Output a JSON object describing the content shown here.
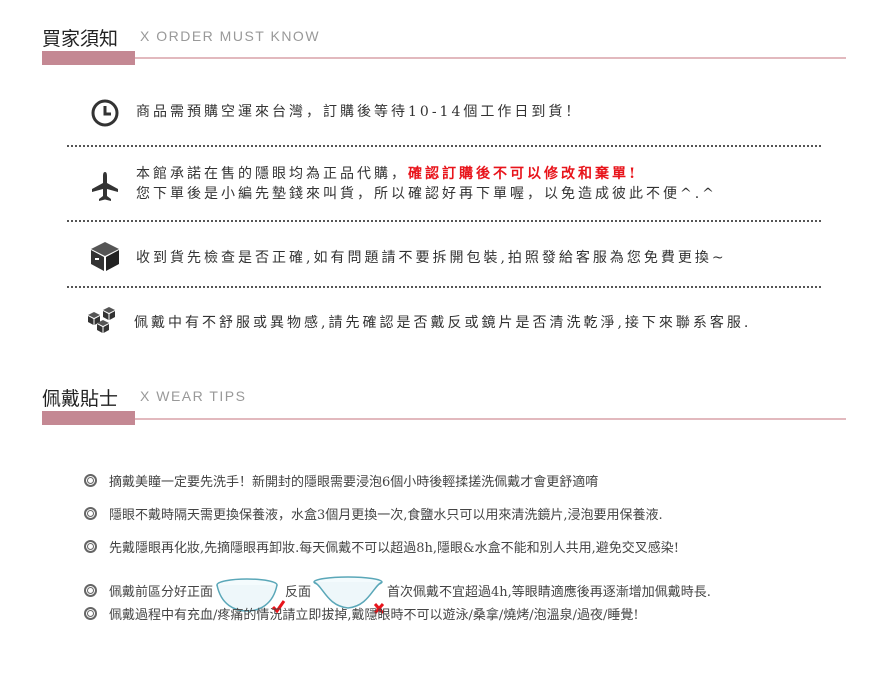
{
  "order_section": {
    "title": "買家須知",
    "subtitle": "X  ORDER MUST KNOW",
    "notices": [
      {
        "icon": "clock-icon",
        "text": "商品需預購空運來台灣，訂購後等待10-14個工作日到貨！"
      },
      {
        "icon": "airplane-icon",
        "text": "本館承諾在售的隱眼均為正品代購，",
        "highlight": "確認訂購後不可以修改和棄單!",
        "text2": "您下單後是小編先墊錢來叫貨，所以確認好再下單喔，以免造成彼此不便^.^"
      },
      {
        "icon": "box-icon",
        "text": "收到貨先檢查是否正確,如有問題請不要拆開包裝,拍照發給客服為您免費更換~"
      },
      {
        "icon": "cubes-icon",
        "text": "佩戴中有不舒服或異物感,請先確認是否戴反或鏡片是否清洗乾淨,接下來聯系客服."
      }
    ]
  },
  "wear_section": {
    "title": "佩戴貼士",
    "subtitle": "X  WEAR TIPS",
    "tips": [
      "摘戴美瞳一定要先洗手！新開封的隱眼需要浸泡6個小時後輕揉搓洗佩戴才會更舒適唷",
      "隱眼不戴時隔天需更換保養液，水盒3個月更換一次,食鹽水只可以用來清洗鏡片,浸泡要用保養液.",
      "先戴隱眼再化妝,先摘隱眼再卸妝.每天佩戴不可以超過8h,隱眼&水盒不能和別人共用,避免交叉感染!",
      {
        "a": "佩戴前區分好正面",
        "b": "反面",
        "c": "首次佩戴不宜超過4h,等眼睛適應後再逐漸增加佩戴時長."
      },
      "佩戴過程中有充血/疼痛的情況請立即拔掉,戴隱眼時不可以遊泳/桑拿/燒烤/泡溫泉/過夜/睡覺!"
    ]
  },
  "colors": {
    "accent_block": "#c48893",
    "accent_line": "#e2b9be",
    "warning": "#e8141b"
  }
}
